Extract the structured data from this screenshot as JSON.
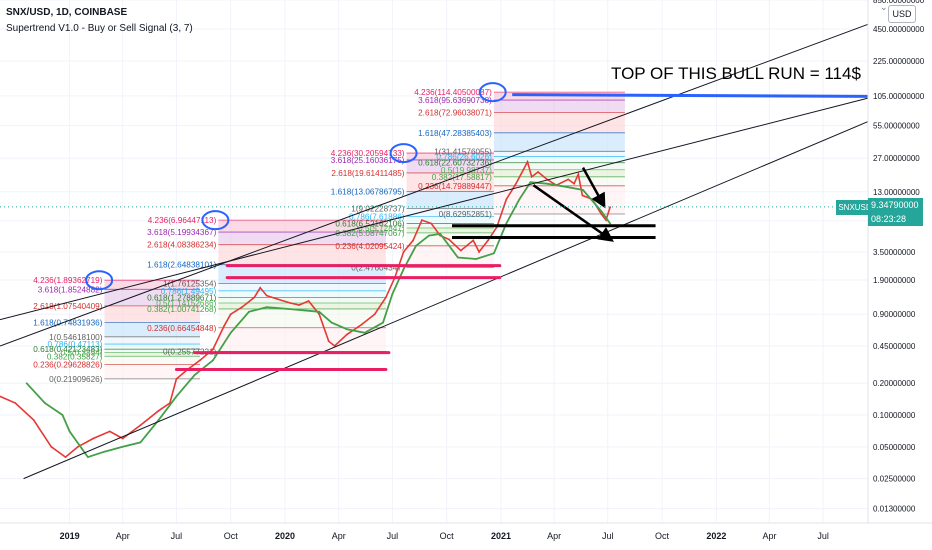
{
  "header": {
    "symbol_line": "SNX/USD, 1D, COINBASE",
    "indicator_line": "Supertrend V1.0 - Buy or Sell Signal (3, 7)"
  },
  "currency_button": "USD",
  "annotation": "TOP OF THIS BULL RUN = 114$",
  "price_label": "9.34790000",
  "countdown": "08:23:28",
  "symbol_badge": "SNXUSD",
  "chart_data": {
    "type": "line",
    "title": "SNX/USD, 1D, COINBASE",
    "yscale": "log",
    "ylim": [
      0.0095,
      850
    ],
    "y_ticks": [
      "850.00000000",
      "450.00000000",
      "225.00000000",
      "105.00000000",
      "55.00000000",
      "27.00000000",
      "13.00000000",
      "6.90000000",
      "3.50000000",
      "1.90000000",
      "0.90000000",
      "0.45000000",
      "0.20000000",
      "0.10000000",
      "0.05000000",
      "0.02500000",
      "0.01300000"
    ],
    "y_tick_values": [
      850,
      450,
      225,
      105,
      55,
      27,
      13,
      6.9,
      3.5,
      1.9,
      0.9,
      0.45,
      0.2,
      0.1,
      0.05,
      0.025,
      0.013
    ],
    "x_ticks": [
      "2019",
      "Apr",
      "Jul",
      "Oct",
      "2020",
      "Apr",
      "Jul",
      "Oct",
      "2021",
      "Apr",
      "Jul",
      "Oct",
      "2022",
      "Apr",
      "Jul"
    ],
    "x_tick_dates": [
      "2019-01-01",
      "2019-04-01",
      "2019-07-01",
      "2019-10-01",
      "2020-01-01",
      "2020-04-01",
      "2020-07-01",
      "2020-10-01",
      "2021-01-01",
      "2021-04-01",
      "2021-07-01",
      "2021-10-01",
      "2022-01-01",
      "2022-04-01",
      "2022-07-01"
    ],
    "xlim": [
      "2018-09-05",
      "2022-09-15"
    ],
    "series": [
      {
        "name": "SNX/USD",
        "points": [
          [
            "2018-09-05",
            0.15
          ],
          [
            "2018-10-01",
            0.13
          ],
          [
            "2018-11-01",
            0.09
          ],
          [
            "2018-12-01",
            0.05
          ],
          [
            "2018-12-25",
            0.04
          ],
          [
            "2019-01-15",
            0.05
          ],
          [
            "2019-02-10",
            0.06
          ],
          [
            "2019-03-10",
            0.07
          ],
          [
            "2019-04-01",
            0.06
          ],
          [
            "2019-05-01",
            0.08
          ],
          [
            "2019-06-01",
            0.11
          ],
          [
            "2019-06-20",
            0.13
          ],
          [
            "2019-07-01",
            0.22
          ],
          [
            "2019-07-20",
            0.27
          ],
          [
            "2019-08-10",
            0.33
          ],
          [
            "2019-09-01",
            0.42
          ],
          [
            "2019-09-20",
            0.7
          ],
          [
            "2019-10-01",
            0.9
          ],
          [
            "2019-10-20",
            1.05
          ],
          [
            "2019-11-10",
            1.3
          ],
          [
            "2019-11-20",
            1.6
          ],
          [
            "2019-12-01",
            1.35
          ],
          [
            "2019-12-20",
            1.25
          ],
          [
            "2020-01-10",
            1.15
          ],
          [
            "2020-01-25",
            1.1
          ],
          [
            "2020-02-10",
            1.2
          ],
          [
            "2020-02-28",
            0.9
          ],
          [
            "2020-03-15",
            0.5
          ],
          [
            "2020-03-25",
            0.45
          ],
          [
            "2020-04-15",
            0.58
          ],
          [
            "2020-05-10",
            0.72
          ],
          [
            "2020-06-01",
            0.9
          ],
          [
            "2020-06-20",
            1.3
          ],
          [
            "2020-07-05",
            2.0
          ],
          [
            "2020-07-20",
            3.5
          ],
          [
            "2020-08-05",
            4.5
          ],
          [
            "2020-08-20",
            7.0
          ],
          [
            "2020-09-05",
            6.5
          ],
          [
            "2020-09-20",
            5.0
          ],
          [
            "2020-10-05",
            4.6
          ],
          [
            "2020-10-25",
            3.6
          ],
          [
            "2020-11-15",
            4.5
          ],
          [
            "2020-11-25",
            3.5
          ],
          [
            "2020-12-10",
            4.5
          ],
          [
            "2020-12-25",
            6.0
          ],
          [
            "2021-01-10",
            11.0
          ],
          [
            "2021-01-25",
            15.0
          ],
          [
            "2021-02-08",
            21.0
          ],
          [
            "2021-02-15",
            25.0
          ],
          [
            "2021-02-22",
            18.0
          ],
          [
            "2021-03-05",
            20.0
          ],
          [
            "2021-03-20",
            17.0
          ],
          [
            "2021-04-05",
            15.0
          ],
          [
            "2021-04-25",
            17.0
          ],
          [
            "2021-05-05",
            15.5
          ],
          [
            "2021-05-12",
            19.0
          ],
          [
            "2021-05-19",
            12.0
          ],
          [
            "2021-06-05",
            11.0
          ],
          [
            "2021-06-20",
            8.0
          ],
          [
            "2021-06-28",
            7.0
          ],
          [
            "2021-07-05",
            9.3
          ]
        ]
      },
      {
        "name": "Supertrend",
        "points": [
          [
            "2018-10-20",
            0.2
          ],
          [
            "2018-11-20",
            0.13
          ],
          [
            "2018-12-20",
            0.1
          ],
          [
            "2019-01-01",
            0.07
          ],
          [
            "2019-02-01",
            0.04
          ],
          [
            "2019-03-01",
            0.045
          ],
          [
            "2019-04-01",
            0.05
          ],
          [
            "2019-05-01",
            0.055
          ],
          [
            "2019-06-01",
            0.09
          ],
          [
            "2019-07-01",
            0.15
          ],
          [
            "2019-08-01",
            0.24
          ],
          [
            "2019-09-01",
            0.33
          ],
          [
            "2019-10-01",
            0.6
          ],
          [
            "2019-11-01",
            0.95
          ],
          [
            "2019-12-01",
            1.05
          ],
          [
            "2020-01-15",
            1.0
          ],
          [
            "2020-02-28",
            0.95
          ],
          [
            "2020-03-20",
            0.75
          ],
          [
            "2020-04-15",
            0.65
          ],
          [
            "2020-05-15",
            0.6
          ],
          [
            "2020-06-15",
            0.75
          ],
          [
            "2020-07-01",
            1.4
          ],
          [
            "2020-07-20",
            2.4
          ],
          [
            "2020-08-10",
            4.0
          ],
          [
            "2020-09-01",
            5.0
          ],
          [
            "2020-09-20",
            5.2
          ],
          [
            "2020-10-20",
            3.1
          ],
          [
            "2020-11-20",
            3.0
          ],
          [
            "2020-12-20",
            3.4
          ],
          [
            "2021-01-10",
            6.5
          ],
          [
            "2021-02-01",
            11.0
          ],
          [
            "2021-02-20",
            16.0
          ],
          [
            "2021-03-20",
            15.5
          ],
          [
            "2021-04-20",
            14.5
          ],
          [
            "2021-05-20",
            13.5
          ],
          [
            "2021-06-20",
            8.5
          ],
          [
            "2021-07-05",
            6.5
          ]
        ]
      }
    ],
    "fib_labels": [
      {
        "text": "4.236(1.89362719)",
        "value": 1.89,
        "color": "#e91e63"
      },
      {
        "text": "3.618(1.8524882)",
        "value": 1.55,
        "color": "#9c27b0"
      },
      {
        "text": "2.618(1.07540409)",
        "value": 1.08,
        "color": "#d32f2f"
      },
      {
        "text": "1.618(0.74831936)",
        "value": 0.75,
        "color": "#1565c0"
      },
      {
        "text": "1(0.54618100)",
        "value": 0.55,
        "color": "#616161"
      },
      {
        "text": "0.786(0.47113)",
        "value": 0.47,
        "color": "#29b6f6"
      },
      {
        "text": "0.618(0.42123483)",
        "value": 0.42,
        "color": "#2e7d32"
      },
      {
        "text": "0.5(0.3894)",
        "value": 0.39,
        "color": "#4caf50"
      },
      {
        "text": "0.382(0.35827)",
        "value": 0.36,
        "color": "#43a047"
      },
      {
        "text": "0.236(0.29628826)",
        "value": 0.3,
        "color": "#d32f2f"
      },
      {
        "text": "0(0.21909626)",
        "value": 0.22,
        "color": "#616161"
      },
      {
        "text": "4.236(6.96447113)",
        "value": 7.0,
        "color": "#e91e63"
      },
      {
        "text": "3.618(5.19934367)",
        "value": 5.4,
        "color": "#9c27b0"
      },
      {
        "text": "2.618(4.08386234)",
        "value": 4.1,
        "color": "#d32f2f"
      },
      {
        "text": "1.618(2.64838101)",
        "value": 2.65,
        "color": "#1565c0"
      },
      {
        "text": "1(1.76125354)",
        "value": 1.76,
        "color": "#616161"
      },
      {
        "text": "0.786(1.49495)",
        "value": 1.5,
        "color": "#29b6f6"
      },
      {
        "text": "0.618(1.27889671)",
        "value": 1.3,
        "color": "#2e7d32"
      },
      {
        "text": "0.5(1.14152686)",
        "value": 1.15,
        "color": "#4caf50"
      },
      {
        "text": "0.382(1.00741268)",
        "value": 1.01,
        "color": "#43a047"
      },
      {
        "text": "0.236(0.66454848)",
        "value": 0.67,
        "color": "#d32f2f"
      },
      {
        "text": "0(0.25577221)",
        "value": 0.4,
        "color": "#616161"
      },
      {
        "text": "4.236(30.20594733)",
        "value": 30.2,
        "color": "#e91e63"
      },
      {
        "text": "3.618(25.16036175)",
        "value": 26.0,
        "color": "#9c27b0"
      },
      {
        "text": "2.618(19.61411485)",
        "value": 19.6,
        "color": "#d32f2f"
      },
      {
        "text": "1.618(13.06786795)",
        "value": 13.1,
        "color": "#1565c0"
      },
      {
        "text": "1(9.02228737)",
        "value": 9.0,
        "color": "#616161"
      },
      {
        "text": "0.786(7.61886)",
        "value": 7.6,
        "color": "#29b6f6"
      },
      {
        "text": "0.618(6.52162106)",
        "value": 6.5,
        "color": "#2e7d32"
      },
      {
        "text": "0.5(5.72847)",
        "value": 5.9,
        "color": "#4caf50"
      },
      {
        "text": "0.382(5.08747067)",
        "value": 5.3,
        "color": "#43a047"
      },
      {
        "text": "0.236(4.02095424)",
        "value": 4.0,
        "color": "#d32f2f"
      },
      {
        "text": "0(2.47604347)",
        "value": 2.5,
        "color": "#616161"
      },
      {
        "text": "4.236(114.40500087)",
        "value": 114,
        "color": "#e91e63"
      },
      {
        "text": "3.618(95.63690738)",
        "value": 96,
        "color": "#9c27b0"
      },
      {
        "text": "2.618(72.96038071)",
        "value": 73,
        "color": "#d32f2f"
      },
      {
        "text": "1.618(47.28385403)",
        "value": 47,
        "color": "#1565c0"
      },
      {
        "text": "1(31.41576055)",
        "value": 31.4,
        "color": "#616161"
      },
      {
        "text": "0.786(26.6026)",
        "value": 28.0,
        "color": "#29b6f6"
      },
      {
        "text": "0.618(22.60732736)",
        "value": 24.5,
        "color": "#2e7d32"
      },
      {
        "text": "0.5(19.98737)",
        "value": 21.0,
        "color": "#4caf50"
      },
      {
        "text": "0.382(17.58817)",
        "value": 18.0,
        "color": "#43a047"
      },
      {
        "text": "0.236(14.79889447)",
        "value": 14.8,
        "color": "#d32f2f"
      },
      {
        "text": "0(8.62952851)",
        "value": 8.0,
        "color": "#616161"
      }
    ],
    "colors": {
      "price_line": "#e53935",
      "supertrend": "#43a047",
      "accent_blue": "#2962ff",
      "pink_line": "#e91e63",
      "trend_line": "#131722"
    }
  }
}
